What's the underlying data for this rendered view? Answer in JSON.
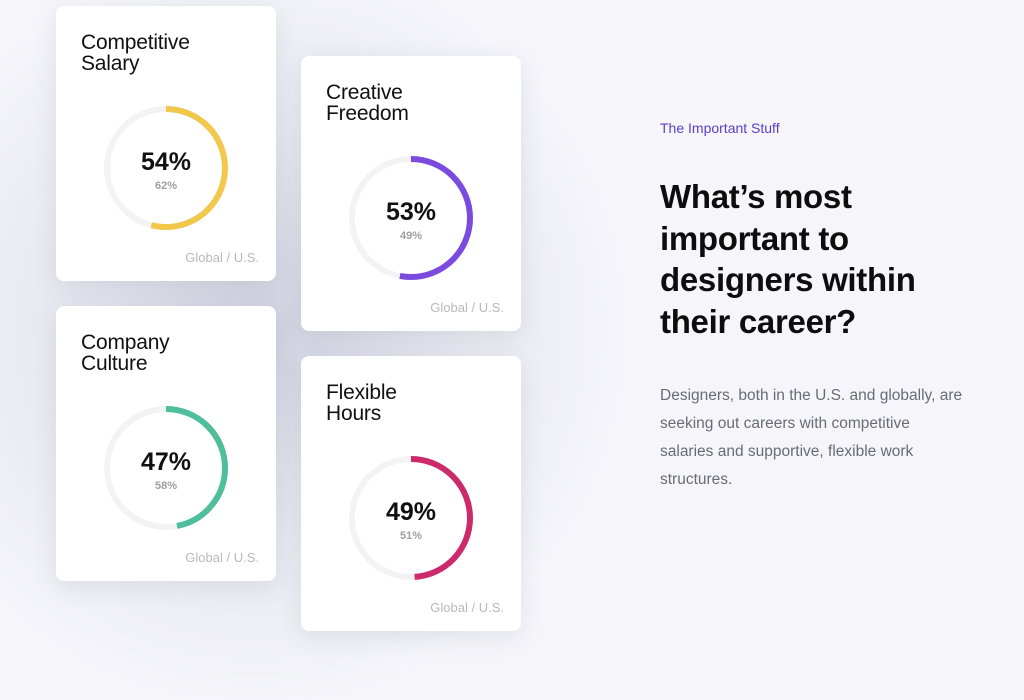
{
  "section": {
    "eyebrow": "The Important Stuff",
    "headline_lines": [
      "What’s most",
      "important to",
      "designers within",
      "their career?"
    ],
    "body_lines": [
      "Designers, both in the U.S. and globally, are",
      "seeking out careers with competitive",
      "salaries and supportive, flexible work",
      "structures."
    ]
  },
  "cards": [
    {
      "title_lines": [
        "Competitive",
        "Salary"
      ],
      "global": "54%",
      "us": "62%",
      "value": 54,
      "color": "#f1c84b",
      "footer": "Global / U.S."
    },
    {
      "title_lines": [
        "Creative",
        "Freedom"
      ],
      "global": "53%",
      "us": "49%",
      "value": 53,
      "color": "#7b4be0",
      "footer": "Global / U.S."
    },
    {
      "title_lines": [
        "Company",
        "Culture"
      ],
      "global": "47%",
      "us": "58%",
      "value": 47,
      "color": "#4fbe9c",
      "footer": "Global / U.S."
    },
    {
      "title_lines": [
        "Flexible",
        "Hours"
      ],
      "global": "49%",
      "us": "51%",
      "value": 49,
      "color": "#cc2a6a",
      "footer": "Global / U.S."
    }
  ]
}
